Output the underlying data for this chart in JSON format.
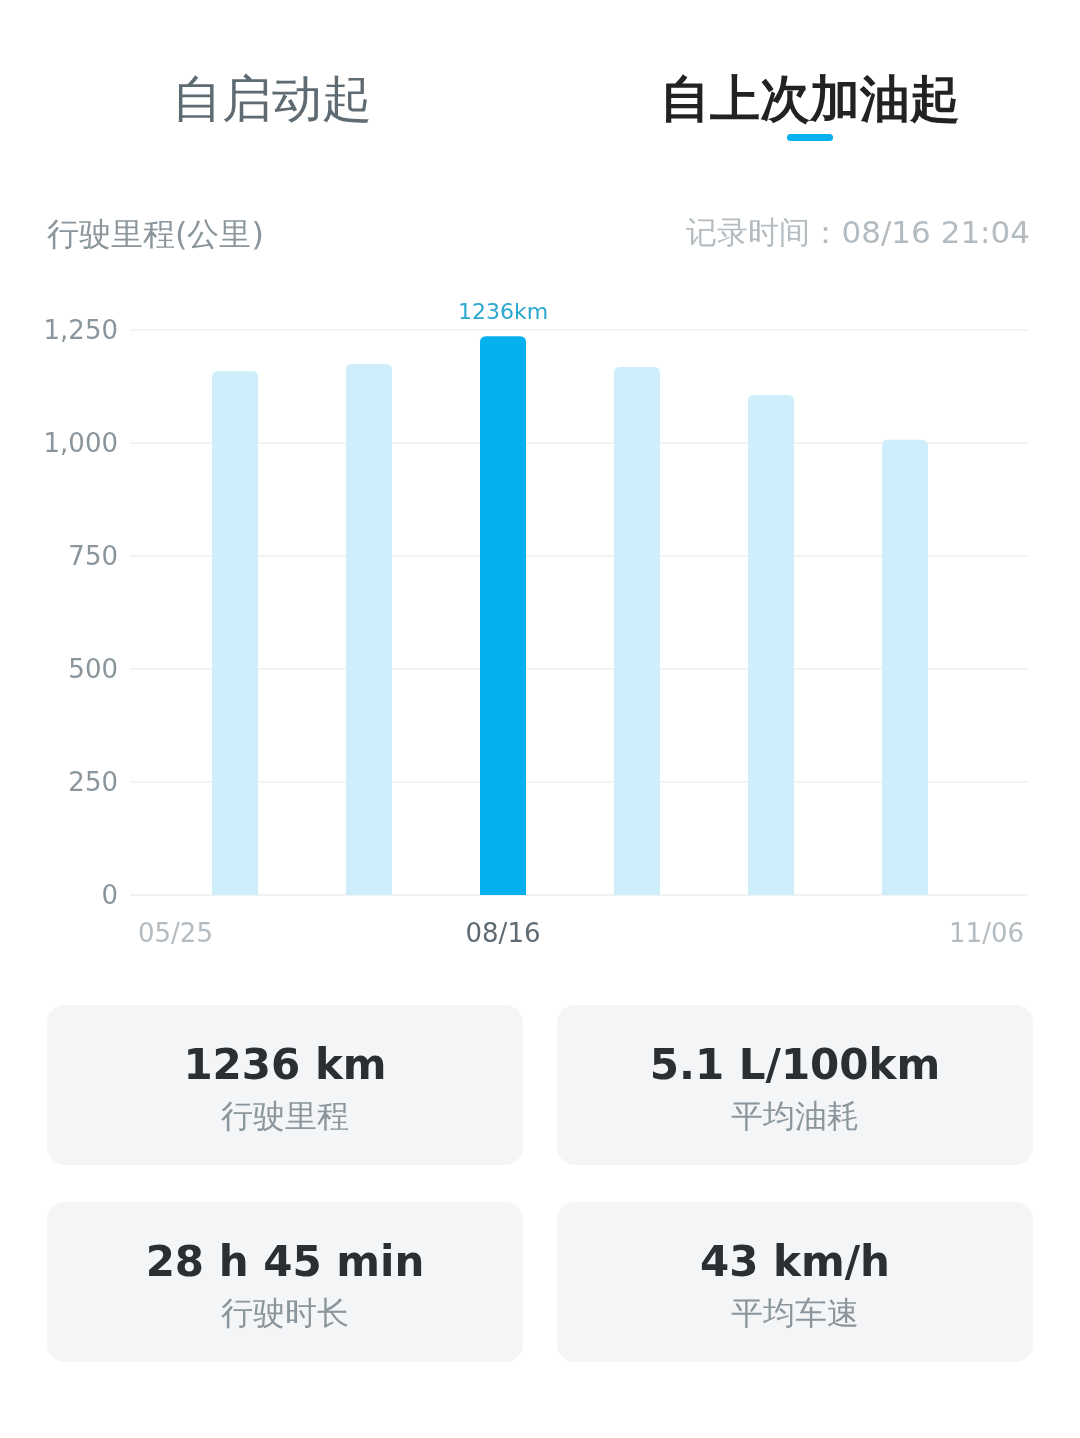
{
  "chart_data": {
    "type": "bar",
    "title": "自上次加油起",
    "subtitle": "记录时间：08/16 21:04",
    "ylabel": "行驶里程(公里)",
    "categories": [
      null,
      null,
      "08/16",
      null,
      null,
      null
    ],
    "values": [
      1159,
      1175,
      1236,
      1168,
      1106,
      1007
    ],
    "colors": [
      "#cdeefa",
      "#cdeefa",
      "#04b0ee",
      "#cdeefa",
      "#cdeefa",
      "#cdeefa"
    ],
    "value_labels": [
      null,
      null,
      "1236km",
      null,
      null,
      null
    ],
    "ylim": [
      0,
      1250
    ],
    "yticks": [
      0,
      250,
      500,
      750,
      {
        "value": 1000,
        "label": "1,000"
      },
      {
        "value": 1250,
        "label": "1,250"
      }
    ],
    "grid": "y",
    "annotations": [
      "自启动起",
      "05/25",
      "11/06",
      "1236 km",
      "行驶里程",
      "5.1 L/100km",
      "平均油耗",
      "28 h 45 min",
      "行驶时长",
      "43 km/h",
      "平均车速"
    ]
  }
}
